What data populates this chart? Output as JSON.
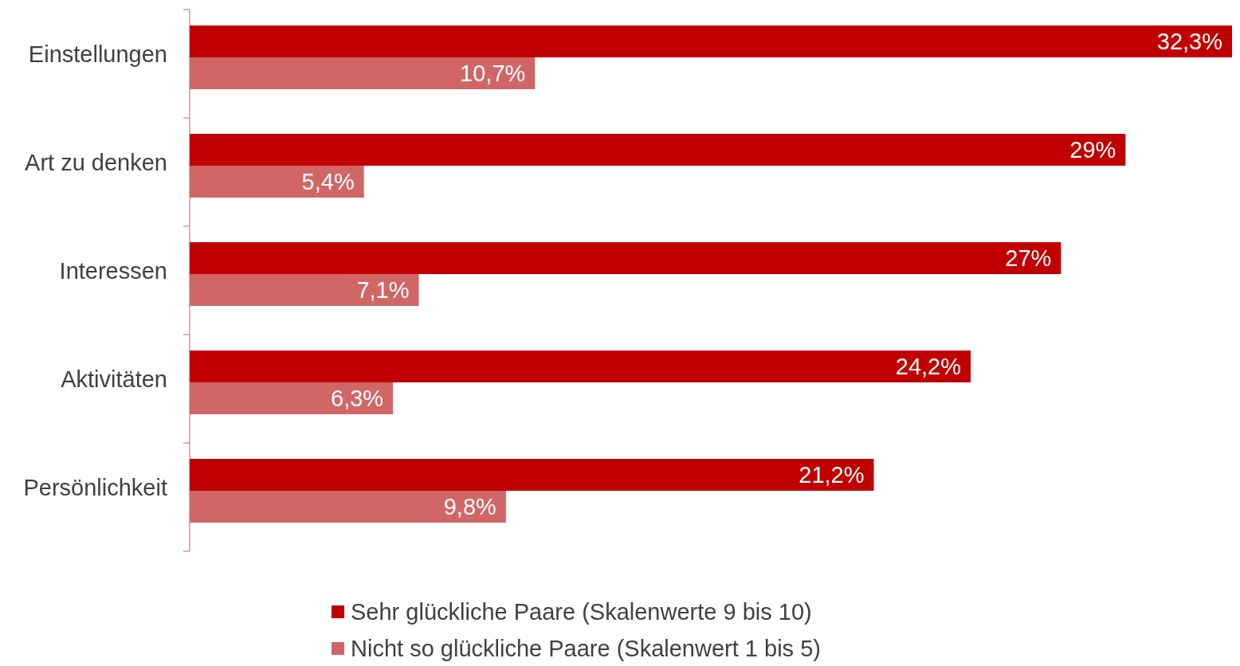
{
  "chart_data": {
    "type": "bar",
    "orientation": "horizontal",
    "categories": [
      "Einstellungen",
      "Art zu denken",
      "Interessen",
      "Aktivitäten",
      "Persönlichkeit"
    ],
    "series": [
      {
        "name": "Sehr glückliche Paare (Skalenwerte 9 bis 10)",
        "color": "#c00000",
        "values": [
          32.3,
          29,
          27,
          24.2,
          21.2
        ],
        "value_labels": [
          "32,3%",
          "29%",
          "27%",
          "24,2%",
          "21,2%"
        ]
      },
      {
        "name": "Nicht so glückliche Paare (Skalenwert 1 bis 5)",
        "color": "#d06666",
        "values": [
          10.7,
          5.4,
          7.1,
          6.3,
          9.8
        ],
        "value_labels": [
          "10,7%",
          "5,4%",
          "7,1%",
          "6,3%",
          "9,8%"
        ]
      }
    ],
    "legend": "bottom"
  }
}
